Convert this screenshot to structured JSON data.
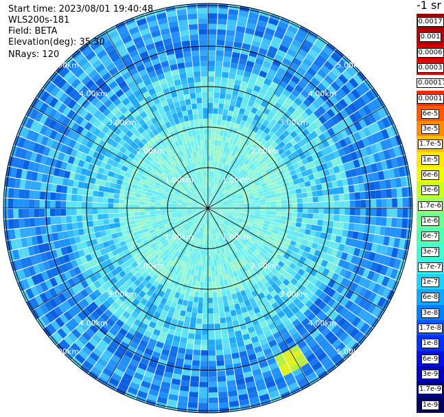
{
  "info": {
    "start_time": "Start time: 2023/08/01 19:40:48",
    "instrument": "WLS200s-181",
    "field": "Field: BETA",
    "elevation": "Elevation(deg): 35.30",
    "nrays": "NRays: 120"
  },
  "legend": {
    "unit_label": "-1 sr",
    "labels": [
      "0.0017",
      "0.001",
      "0.0006",
      "0.0003",
      "0.00017",
      "0.0001",
      "6e-5",
      "3e-5",
      "1.7e-5",
      "1e-5",
      "6e-6",
      "3e-6",
      "1.7e-6",
      "1e-6",
      "6e-7",
      "3e-7",
      "1.7e-7",
      "1e-7",
      "6e-8",
      "3e-8",
      "1.7e-8",
      "1e-8",
      "6e-9",
      "3e-9",
      "1.7e-9",
      "1e-9"
    ],
    "colors": [
      "#a00000",
      "#b50000",
      "#d00000",
      "#e80000",
      "#ffffff",
      "#ff2a00",
      "#ff5a00",
      "#ff8c00",
      "#ffc000",
      "#ffe800",
      "#f0ff00",
      "#c8ff20",
      "#a0ff60",
      "#70ff90",
      "#50ffb0",
      "#40ffd0",
      "#30f0f0",
      "#20d0ff",
      "#10a8ff",
      "#0080ff",
      "#0058ff",
      "#0030ff",
      "#0010e0",
      "#0000c0",
      "#000090",
      "#000060"
    ]
  },
  "range_labels": [
    "1.00km",
    "2.00km",
    "3.00km",
    "4.00km",
    "5.00km"
  ],
  "chart_data": {
    "type": "heatmap",
    "projection": "polar PPI scan",
    "nrays": 120,
    "range_rings_km": [
      1,
      2,
      3,
      4,
      5
    ],
    "max_range_km": 5.1,
    "spokes_deg": [
      0,
      30,
      60,
      90,
      120,
      150,
      180,
      210,
      240,
      270,
      300,
      330
    ],
    "value_field": "BETA",
    "colorscale": "log backscatter, 1e-9 to 0.0017",
    "notable_feature": "yellow-green high value patch near 4.2 km at bearing ~150 deg"
  }
}
